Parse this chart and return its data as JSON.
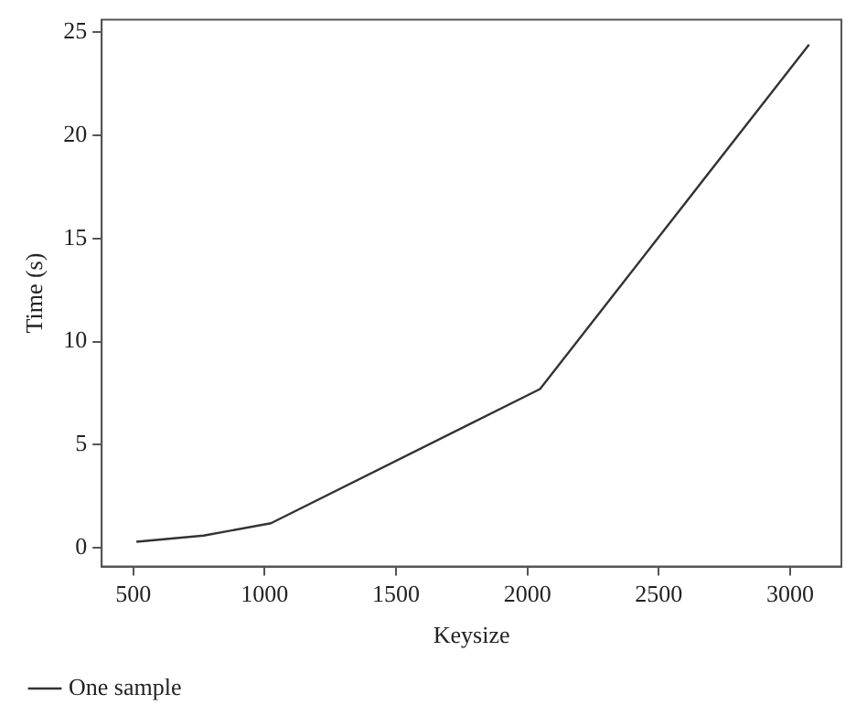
{
  "chart_data": {
    "type": "line",
    "xlabel": "Keysize",
    "ylabel": "Time (s)",
    "x": [
      512,
      768,
      1024,
      2048,
      3072
    ],
    "series": [
      {
        "name": "One sample",
        "color": "#333333",
        "values": [
          0.3,
          0.6,
          1.2,
          7.7,
          24.4
        ]
      }
    ],
    "xlim": [
      380,
      3195
    ],
    "xticks": [
      500,
      1000,
      1500,
      2000,
      2500,
      3000
    ],
    "ylim": [
      -0.9,
      25.6
    ],
    "yticks": [
      0,
      5,
      10,
      15,
      20,
      25
    ],
    "grid": false,
    "legend": "bottom left",
    "marker": "none",
    "line_style": "solid"
  }
}
